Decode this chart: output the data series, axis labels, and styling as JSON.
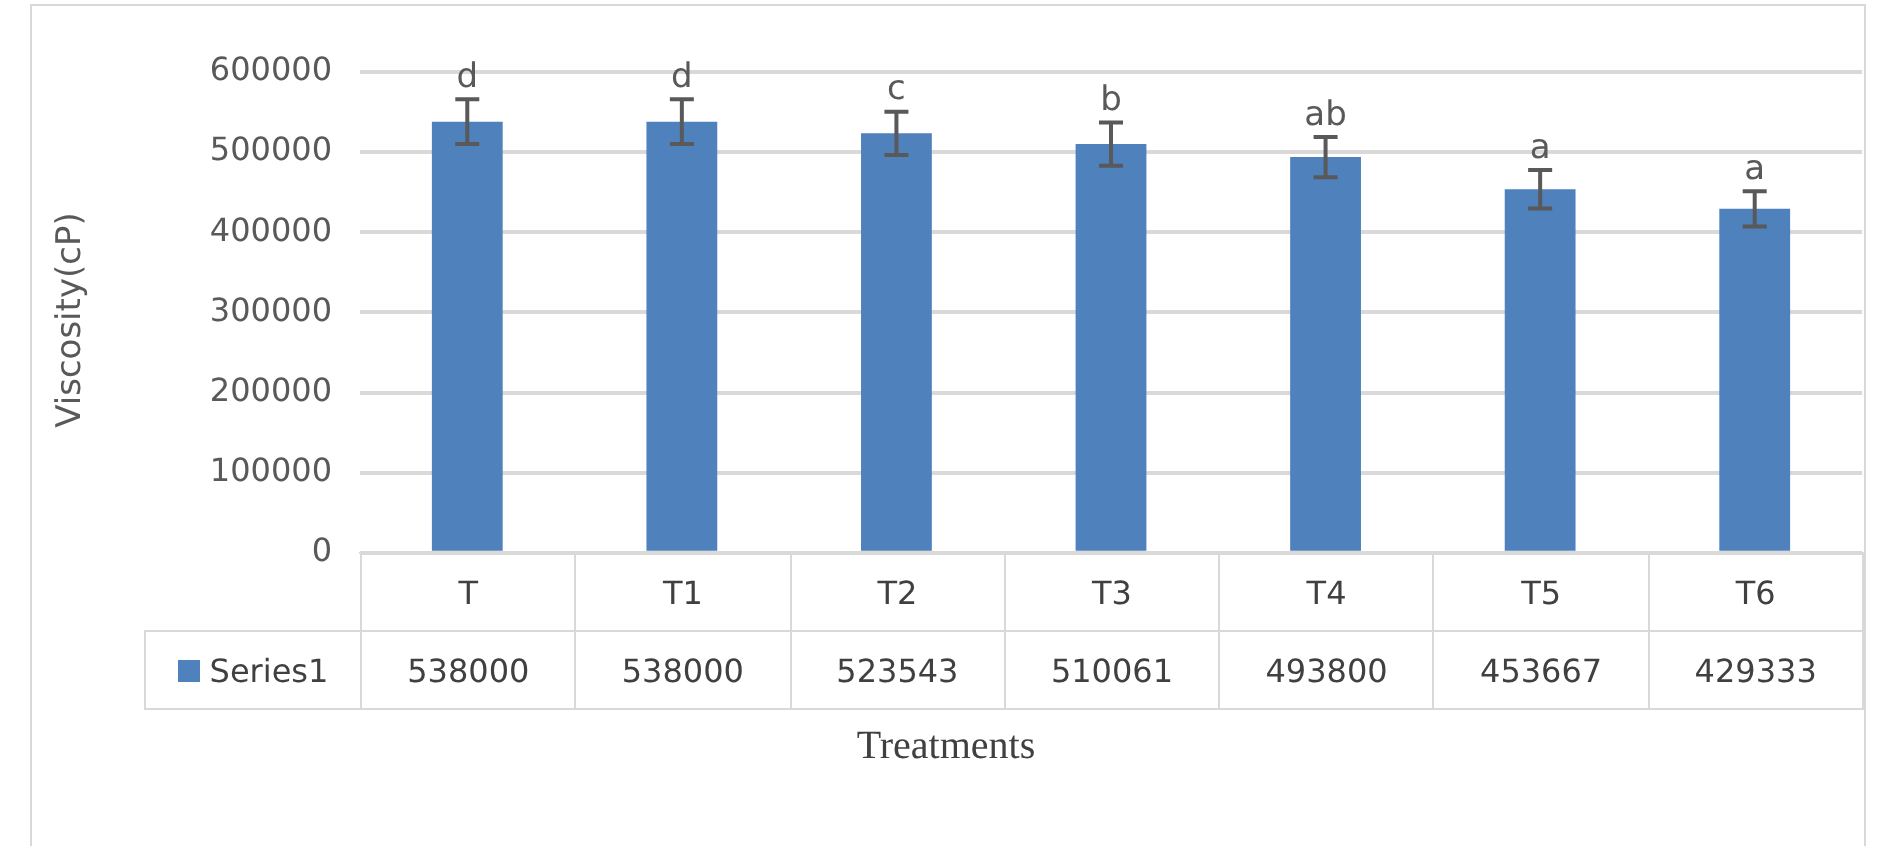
{
  "chart_data": {
    "type": "bar",
    "xlabel": "Treatments",
    "ylabel": "Viscosity(cP)",
    "categories": [
      "T",
      "T1",
      "T2",
      "T3",
      "T4",
      "T5",
      "T6"
    ],
    "series": [
      {
        "name": "Series1",
        "color": "#4f81bd",
        "values": [
          538000,
          538000,
          523543,
          510061,
          493800,
          453667,
          429333
        ],
        "errors": [
          28000,
          28000,
          27000,
          27000,
          25000,
          24000,
          22000
        ]
      }
    ],
    "ylim": [
      0,
      600000
    ],
    "yticks": [
      0,
      100000,
      200000,
      300000,
      400000,
      500000,
      600000
    ],
    "grid": "y",
    "legend": "bottom",
    "data_labels": true,
    "annotations": [
      {
        "text": "d",
        "x": "T",
        "y": 566000
      },
      {
        "text": "d",
        "x": "T1",
        "y": 566000
      },
      {
        "text": "c",
        "x": "T2",
        "y": 550543
      },
      {
        "text": "b",
        "x": "T3",
        "y": 537061
      },
      {
        "text": "ab",
        "x": "T4",
        "y": 518800
      },
      {
        "text": "a",
        "x": "T5",
        "y": 477667
      },
      {
        "text": "a",
        "x": "T6",
        "y": 451333
      }
    ]
  }
}
